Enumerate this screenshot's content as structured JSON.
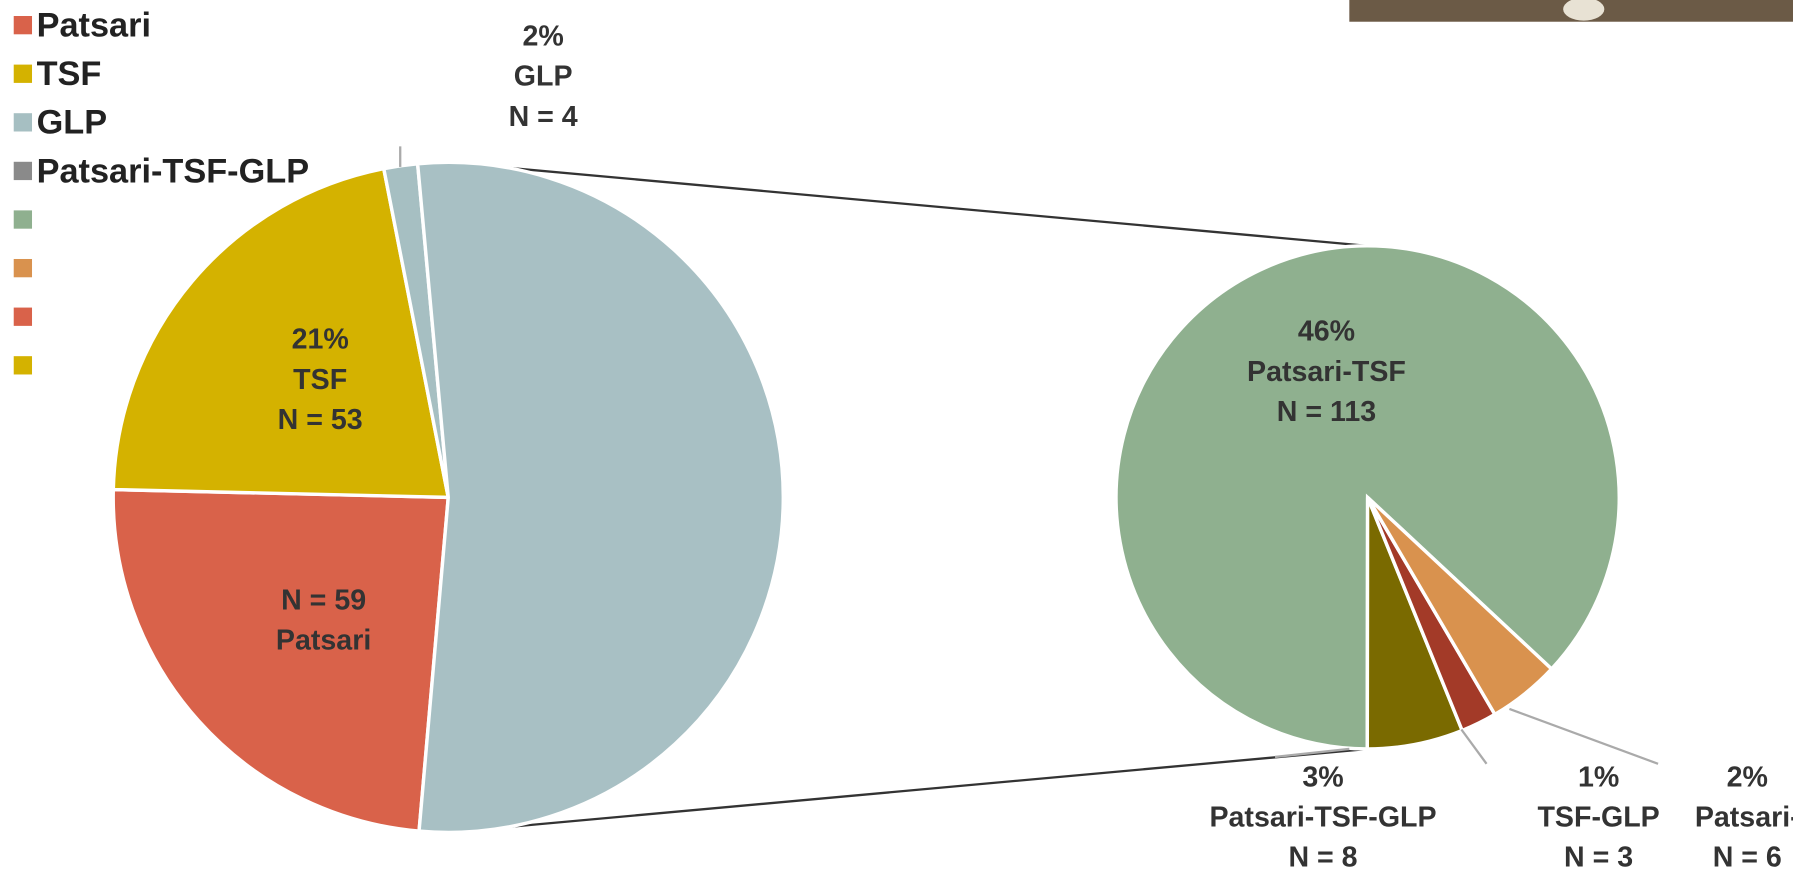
{
  "chart_data": {
    "type": "pie-of-pie",
    "legend": [
      {
        "name": "Patsari",
        "color": "#d9624a"
      },
      {
        "name": "TSF",
        "color": "#d4b200"
      },
      {
        "name": "GLP",
        "color": "#a6bfc2"
      },
      {
        "name": "Patsari-TSF-GLP",
        "color": "#8a8a8a"
      },
      {
        "color": "#8fb08f"
      },
      {
        "color": "#d9924e"
      },
      {
        "color": "#d9624a"
      },
      {
        "color": "#d4b200"
      }
    ],
    "pies": [
      {
        "categories": [
          "Patsari",
          "TSF",
          "GLP",
          null
        ],
        "values": [
          59,
          53,
          4,
          130
        ],
        "colors": [
          "#d9624a",
          "#d4b200",
          "#a6bfc2",
          "#a8c0c4"
        ],
        "labels": [
          [
            "N = 59",
            "Patsari"
          ],
          [
            "21%",
            "TSF",
            "N = 53"
          ],
          [
            "2%",
            "GLP",
            "N = 4"
          ],
          null
        ]
      },
      {
        "categories": [
          "Patsari-TSF",
          "Patsari-TSF-GLP",
          "TSF-GLP",
          "Patsari-"
        ],
        "values": [
          113,
          8,
          3,
          6
        ],
        "colors": [
          "#8fb08f",
          "#7a6a00",
          "#a33a28",
          "#d9924e"
        ],
        "labels": [
          [
            "46%",
            "Patsari-TSF",
            "N = 113"
          ],
          [
            "3%",
            "Patsari-TSF-GLP",
            "N = 8"
          ],
          [
            "1%",
            "TSF-GLP",
            "N = 3"
          ],
          [
            "2%",
            "Patsari-",
            "N = 6"
          ]
        ]
      }
    ]
  }
}
